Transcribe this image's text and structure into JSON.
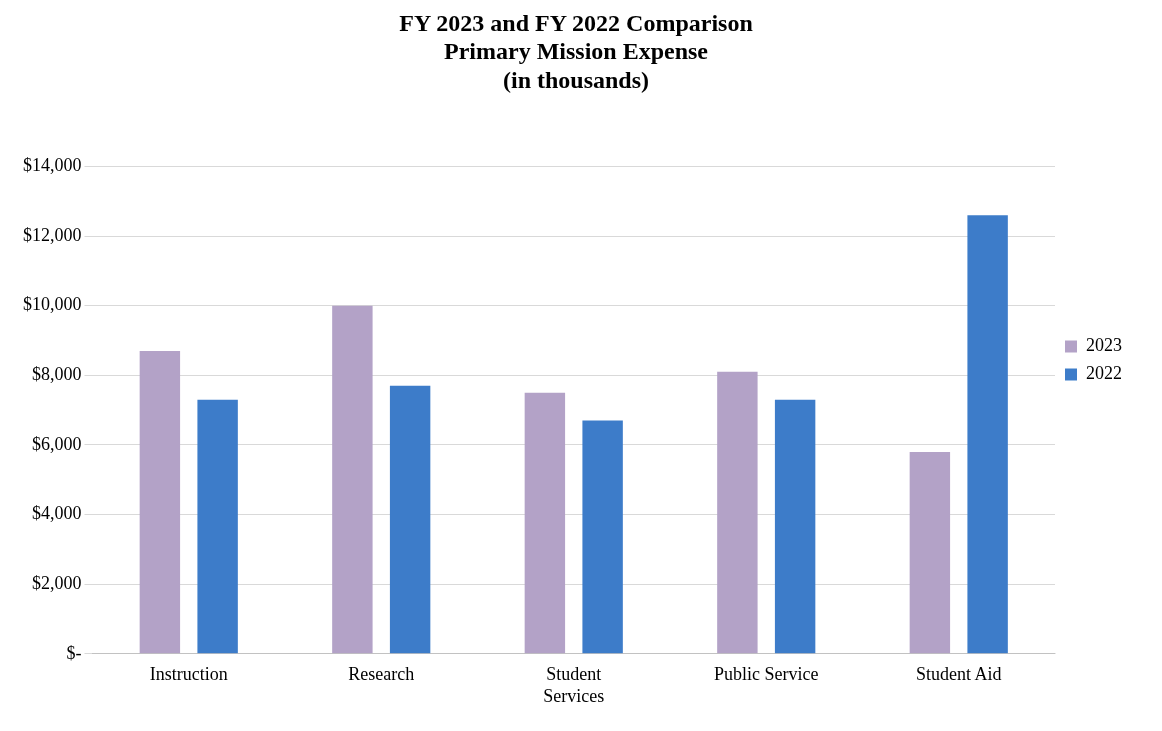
{
  "chart_data": {
    "type": "bar",
    "title": "FY 2023 and FY 2022 Comparison\nPrimary Mission Expense\n(in thousands)",
    "categories": [
      "Instruction",
      "Research",
      "Student Services",
      "Public Service",
      "Student Aid"
    ],
    "series": [
      {
        "name": "2023",
        "color": "#b3a2c7",
        "values": [
          8700,
          10000,
          7500,
          8100,
          5800
        ]
      },
      {
        "name": "2022",
        "color": "#3d7cc9",
        "values": [
          7300,
          7700,
          6700,
          7300,
          12600
        ]
      }
    ],
    "ylim": [
      0,
      14000
    ],
    "yticks": [
      {
        "value": 0,
        "label": "$-"
      },
      {
        "value": 2000,
        "label": "$2,000"
      },
      {
        "value": 4000,
        "label": "$4,000"
      },
      {
        "value": 6000,
        "label": "$6,000"
      },
      {
        "value": 8000,
        "label": "$8,000"
      },
      {
        "value": 10000,
        "label": "$10,000"
      },
      {
        "value": 12000,
        "label": "$12,000"
      },
      {
        "value": 14000,
        "label": "$14,000"
      }
    ],
    "grid": "y",
    "legend": "right"
  }
}
